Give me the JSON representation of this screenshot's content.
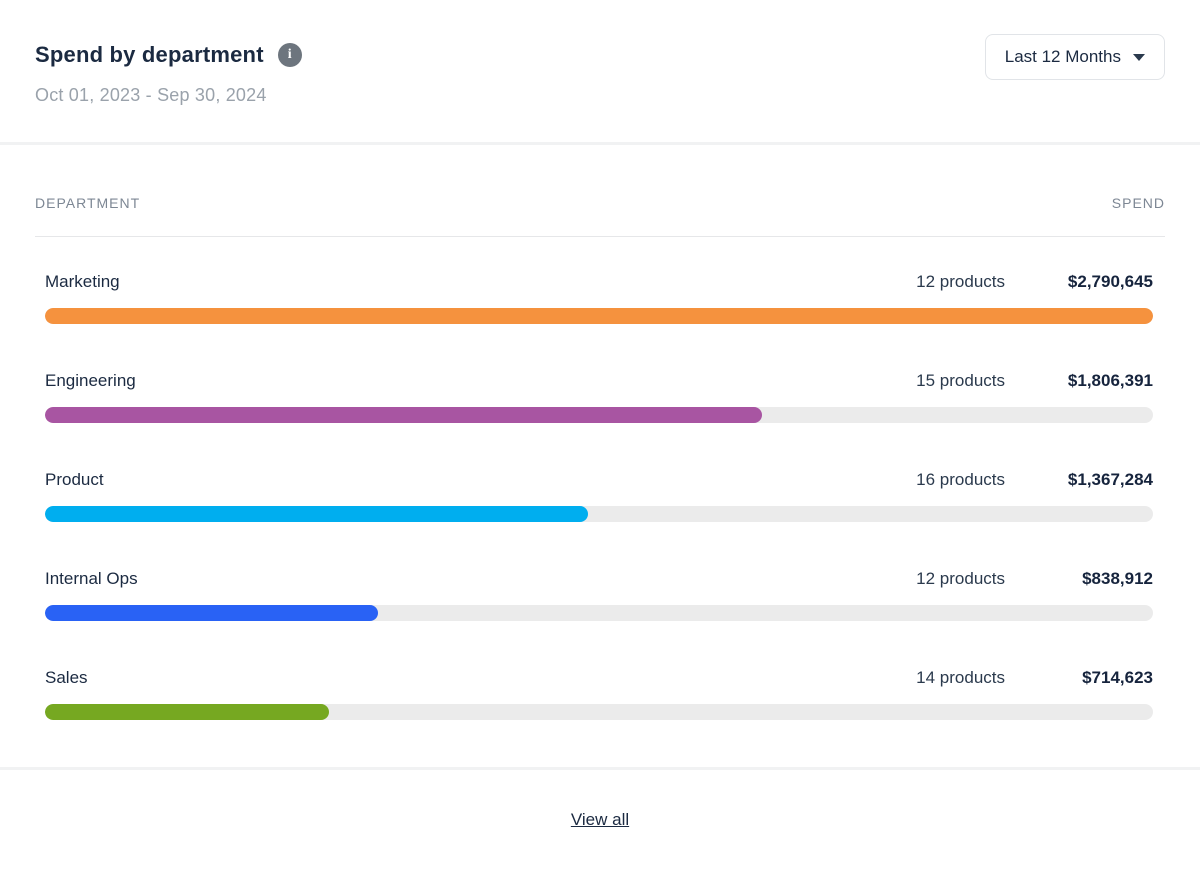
{
  "header": {
    "title": "Spend by department",
    "date_range": "Oct 01, 2023 - Sep 30, 2024",
    "info_icon_glyph": "i",
    "period_selector": {
      "label": "Last 12 Months"
    }
  },
  "table": {
    "columns": {
      "department": "DEPARTMENT",
      "spend": "SPEND"
    },
    "track_color": "#ebebeb",
    "max_value": 2790645,
    "rows": [
      {
        "department": "Marketing",
        "products": "12 products",
        "spend": "$2,790,645",
        "value": 2790645,
        "bar_color": "#f5923e"
      },
      {
        "department": "Engineering",
        "products": "15 products",
        "spend": "$1,806,391",
        "value": 1806391,
        "bar_color": "#a855a2"
      },
      {
        "department": "Product",
        "products": "16 products",
        "spend": "$1,367,284",
        "value": 1367284,
        "bar_color": "#00aeef"
      },
      {
        "department": "Internal Ops",
        "products": "12 products",
        "spend": "$838,912",
        "value": 838912,
        "bar_color": "#2962f5"
      },
      {
        "department": "Sales",
        "products": "14 products",
        "spend": "$714,623",
        "value": 714623,
        "bar_color": "#76a821"
      }
    ]
  },
  "footer": {
    "view_all_label": "View all"
  },
  "colors": {
    "title_text": "#1b2a41",
    "muted_text": "#9aa2ab",
    "column_header_text": "#7d8794",
    "info_icon_bg": "#6d757e",
    "divider": "#f1f2f3"
  },
  "chart_data": {
    "type": "bar",
    "orientation": "horizontal",
    "title": "Spend by department",
    "subtitle": "Oct 01, 2023 - Sep 30, 2024",
    "period": "Last 12 Months",
    "categories": [
      "Marketing",
      "Engineering",
      "Product",
      "Internal Ops",
      "Sales"
    ],
    "values": [
      2790645,
      1806391,
      1367284,
      838912,
      714623
    ],
    "value_labels": [
      "$2,790,645",
      "$1,806,391",
      "$1,367,284",
      "$838,912",
      "$714,623"
    ],
    "product_counts": [
      12,
      15,
      16,
      12,
      14
    ],
    "bar_colors": [
      "#f5923e",
      "#a855a2",
      "#00aeef",
      "#2962f5",
      "#76a821"
    ],
    "xlim": [
      0,
      2790645
    ],
    "grid": false,
    "legend": false
  }
}
